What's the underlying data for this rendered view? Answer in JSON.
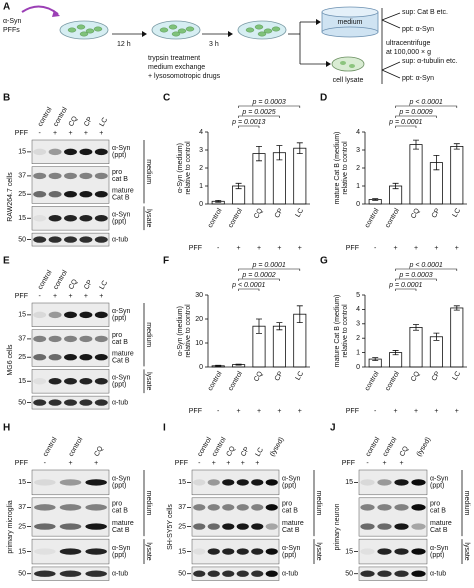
{
  "panel_a": {
    "label": "A",
    "pff": [
      "α-Syn",
      "PFFs"
    ],
    "step1": "12 h",
    "step2": "3 h",
    "treatment": [
      "trypsin treatment",
      "medium exchange",
      "+ lysosomotropic drugs"
    ],
    "medium": "medium",
    "lysate": "cell lysate",
    "centrifuge": [
      "ultracentrifuge",
      "at 100,000 × g"
    ],
    "medium_out": [
      "sup: Cat B etc.",
      "ppt: α-Syn"
    ],
    "lysate_out": [
      "sup: α-tubulin etc.",
      "ppt: α-Syn"
    ]
  },
  "blots": [
    {
      "label": "B",
      "side_label": "RAW264.7 cells",
      "columns": [
        "control",
        "control",
        "CQ",
        "CP",
        "LC"
      ],
      "pff_label": "PFF",
      "pff": [
        "-",
        "+",
        "+",
        "+",
        "+"
      ],
      "groups": [
        {
          "name": "medium",
          "strips": [
            {
              "markers": [
                15
              ],
              "bands": [
                [
                  "α-Syn",
                  "(ppt)"
                ]
              ]
            },
            {
              "markers": [
                37,
                25
              ],
              "bands": [
                [
                  "pro",
                  "cat B"
                ],
                [
                  "mature",
                  "Cat B"
                ]
              ]
            }
          ]
        },
        {
          "name": "lysate",
          "strips": [
            {
              "markers": [
                15
              ],
              "bands": [
                [
                  "α-Syn",
                  "(ppt)"
                ]
              ]
            }
          ]
        }
      ],
      "loading": {
        "markers": [
          50
        ],
        "bands": [
          [
            "α-tub"
          ]
        ]
      }
    },
    {
      "label": "E",
      "side_label": "MG6 cells",
      "columns": [
        "control",
        "control",
        "CQ",
        "CP",
        "LC"
      ],
      "pff_label": "PFF",
      "pff": [
        "-",
        "+",
        "+",
        "+",
        "+"
      ],
      "groups": [
        {
          "name": "medium",
          "strips": [
            {
              "markers": [
                15
              ],
              "bands": [
                [
                  "α-Syn",
                  "(ppt)"
                ]
              ]
            },
            {
              "markers": [
                37,
                25
              ],
              "bands": [
                [
                  "pro",
                  "cat B"
                ],
                [
                  "mature",
                  "Cat B"
                ]
              ]
            }
          ]
        },
        {
          "name": "lysate",
          "strips": [
            {
              "markers": [
                15
              ],
              "bands": [
                [
                  "α-Syn",
                  "(ppt)"
                ]
              ]
            }
          ]
        }
      ],
      "loading": {
        "markers": [
          50
        ],
        "bands": [
          [
            "α-tub"
          ]
        ]
      }
    },
    {
      "label": "H",
      "side_label": "primary microglia",
      "columns": [
        "control",
        "control",
        "CQ"
      ],
      "pff_label": "PFF",
      "pff": [
        "-",
        "+",
        "+"
      ],
      "groups": [
        {
          "name": "medium",
          "strips": [
            {
              "markers": [
                15
              ],
              "bands": [
                [
                  "α-Syn",
                  "(ppt)"
                ]
              ]
            },
            {
              "markers": [
                37,
                25
              ],
              "bands": [
                [
                  "pro",
                  "cat B"
                ],
                [
                  "mature",
                  "Cat B"
                ]
              ]
            }
          ]
        },
        {
          "name": "lysate",
          "strips": [
            {
              "markers": [
                15
              ],
              "bands": [
                [
                  "α-Syn",
                  "(ppt)"
                ]
              ]
            }
          ]
        }
      ],
      "loading": {
        "markers": [
          50
        ],
        "bands": [
          [
            "α-tub"
          ]
        ]
      }
    },
    {
      "label": "I",
      "side_label": "SH-SY5Y cells",
      "columns": [
        "control",
        "control",
        "CQ",
        "CP",
        "LC",
        "(lysed)"
      ],
      "pff_label": "PFF",
      "pff": [
        "-",
        "+",
        "+",
        "+",
        "+"
      ],
      "groups": [
        {
          "name": "medium",
          "strips": [
            {
              "markers": [
                15
              ],
              "bands": [
                [
                  "α-Syn",
                  "(ppt)"
                ]
              ]
            },
            {
              "markers": [
                37,
                25
              ],
              "bands": [
                [
                  "pro",
                  "cat B"
                ],
                [
                  "mature",
                  "Cat B"
                ]
              ]
            }
          ]
        },
        {
          "name": "lysate",
          "strips": [
            {
              "markers": [
                15
              ],
              "bands": [
                [
                  "α-Syn",
                  "(ppt)"
                ]
              ]
            }
          ]
        }
      ],
      "loading": {
        "markers": [
          50
        ],
        "bands": [
          [
            "α-tub"
          ]
        ]
      }
    },
    {
      "label": "J",
      "side_label": "primary neuron",
      "columns": [
        "control",
        "control",
        "CQ",
        "(lysed)"
      ],
      "pff_label": "PFF",
      "pff": [
        "-",
        "+",
        "+"
      ],
      "groups": [
        {
          "name": "medium",
          "strips": [
            {
              "markers": [
                15
              ],
              "bands": [
                [
                  "α-Syn",
                  "(ppt)"
                ]
              ]
            },
            {
              "markers": [],
              "bands": [
                [
                  "pro",
                  "cat B"
                ],
                [
                  "mature",
                  "Cat B"
                ]
              ]
            }
          ]
        },
        {
          "name": "lysate",
          "strips": [
            {
              "markers": [
                15
              ],
              "bands": [
                [
                  "α-Syn",
                  "(ppt)"
                ]
              ]
            }
          ]
        }
      ],
      "loading": {
        "markers": [
          50
        ],
        "bands": [
          [
            "α-tub"
          ]
        ]
      }
    }
  ],
  "chart_data": [
    {
      "type": "bar",
      "label": "C",
      "y_label": [
        "α-Syn (medium)",
        "relative to control"
      ],
      "categories": [
        "control",
        "control",
        "CQ",
        "CP",
        "LC"
      ],
      "pff_label": "PFF",
      "pff": [
        "-",
        "+",
        "+",
        "+",
        "+"
      ],
      "values": [
        0.15,
        1.0,
        2.8,
        2.85,
        3.1
      ],
      "errors": [
        0.05,
        0.15,
        0.4,
        0.4,
        0.3
      ],
      "p_values": [
        null,
        null,
        "p = 0.0013",
        "p = 0.0025",
        "p = 0.0003"
      ],
      "color": "#ffffff",
      "ylim": [
        0,
        4
      ],
      "yticks": [
        0,
        1,
        2,
        3,
        4
      ]
    },
    {
      "type": "bar",
      "label": "D",
      "y_label": [
        "mature Cat B (medium)",
        "relative to control"
      ],
      "categories": [
        "control",
        "control",
        "CQ",
        "CP",
        "LC"
      ],
      "pff_label": "PFF",
      "pff": [
        "-",
        "+",
        "+",
        "+",
        "+"
      ],
      "values": [
        0.25,
        1.0,
        3.3,
        2.3,
        3.2
      ],
      "errors": [
        0.05,
        0.15,
        0.25,
        0.4,
        0.15
      ],
      "p_values": [
        null,
        null,
        "p = 0.0001",
        "p = 0.0009",
        "p < 0.0001"
      ],
      "color": "#ffffff",
      "ylim": [
        0,
        4
      ],
      "yticks": [
        0,
        1,
        2,
        3,
        4
      ]
    },
    {
      "type": "bar",
      "label": "F",
      "y_label": [
        "α-Syn (medium)",
        "relative to control"
      ],
      "categories": [
        "control",
        "control",
        "CQ",
        "CP",
        "LC"
      ],
      "pff_label": "PFF",
      "pff": [
        "-",
        "+",
        "+",
        "+",
        "+"
      ],
      "values": [
        0.5,
        1.0,
        17,
        17,
        22
      ],
      "errors": [
        0.2,
        0.2,
        3,
        1.5,
        3.5
      ],
      "p_values": [
        null,
        null,
        "p < 0.0001",
        "p = 0.0002",
        "p = 0.0001"
      ],
      "color": "#ffffff",
      "ylim": [
        0,
        30
      ],
      "yticks": [
        0,
        10,
        20,
        30
      ]
    },
    {
      "type": "bar",
      "label": "G",
      "y_label": [
        "mature Cat B (medium)",
        "relative to control"
      ],
      "categories": [
        "control",
        "control",
        "CQ",
        "CP",
        "LC"
      ],
      "pff_label": "PFF",
      "pff": [
        "-",
        "+",
        "+",
        "+",
        "+"
      ],
      "values": [
        0.55,
        1.0,
        2.75,
        2.1,
        4.1
      ],
      "errors": [
        0.1,
        0.15,
        0.2,
        0.25,
        0.15
      ],
      "p_values": [
        null,
        null,
        "p = 0.0001",
        "p = 0.0003",
        "p < 0.0001"
      ],
      "color": "#ffffff",
      "ylim": [
        0,
        5
      ],
      "yticks": [
        0,
        1,
        2,
        3,
        4,
        5
      ]
    }
  ]
}
